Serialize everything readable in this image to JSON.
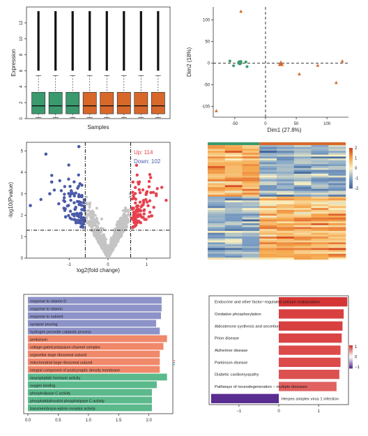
{
  "chart_data": [
    {
      "type": "box",
      "xlabel": "Samples",
      "ylabel": "Expression",
      "yticks": [
        "0",
        "2",
        "4",
        "6",
        "8",
        "10",
        "12"
      ],
      "ylim": [
        0,
        14
      ],
      "boxes": [
        {
          "color": "#3a9a6e",
          "q1": 0.6,
          "median": 1.6,
          "q3": 3.3,
          "whisker_low": 0.15,
          "whisker_high": 5.4
        },
        {
          "color": "#3a9a6e",
          "q1": 0.6,
          "median": 1.6,
          "q3": 3.3,
          "whisker_low": 0.15,
          "whisker_high": 5.4
        },
        {
          "color": "#3a9a6e",
          "q1": 0.6,
          "median": 1.6,
          "q3": 3.3,
          "whisker_low": 0.15,
          "whisker_high": 5.4
        },
        {
          "color": "#d8682a",
          "q1": 0.6,
          "median": 1.6,
          "q3": 3.3,
          "whisker_low": 0.15,
          "whisker_high": 5.4
        },
        {
          "color": "#d8682a",
          "q1": 0.6,
          "median": 1.6,
          "q3": 3.3,
          "whisker_low": 0.15,
          "whisker_high": 5.4
        },
        {
          "color": "#d8682a",
          "q1": 0.6,
          "median": 1.6,
          "q3": 3.3,
          "whisker_low": 0.15,
          "whisker_high": 5.4
        },
        {
          "color": "#d8682a",
          "q1": 0.6,
          "median": 1.6,
          "q3": 3.3,
          "whisker_low": 0.15,
          "whisker_high": 5.4
        },
        {
          "color": "#d8682a",
          "q1": 0.6,
          "median": 1.6,
          "q3": 3.3,
          "whisker_low": 0.15,
          "whisker_high": 5.4
        }
      ]
    },
    {
      "type": "scatter",
      "xlabel": "Dim1 (27.8%)",
      "ylabel": "Dim2 (18%)",
      "xlim": [
        -85,
        135
      ],
      "ylim": [
        -125,
        130
      ],
      "xticks": [
        "-50",
        "0",
        "50",
        "100"
      ],
      "yticks": [
        "-100",
        "-50",
        "0",
        "50",
        "100"
      ],
      "series": [
        {
          "color": "#3a9a6e",
          "shape": "circle",
          "points": [
            [
              -58,
              5
            ],
            [
              -40,
              4
            ],
            [
              -32,
              3
            ],
            [
              -52,
              -6
            ],
            [
              -30,
              -8
            ]
          ],
          "centroid": [
            -42,
            1
          ]
        },
        {
          "color": "#d8682a",
          "shape": "triangle",
          "points": [
            [
              -40,
              120
            ],
            [
              -80,
              -110
            ],
            [
              25,
              -1
            ],
            [
              55,
              -25
            ],
            [
              85,
              -5
            ],
            [
              125,
              5
            ],
            [
              115,
              -45
            ]
          ],
          "centroid": [
            25,
            -1
          ]
        }
      ]
    },
    {
      "type": "scatter",
      "subtype": "volcano",
      "xlabel": "log2(fold change)",
      "ylabel": "-log10(Pvalue)",
      "xlim": [
        -2.1,
        1.6
      ],
      "ylim": [
        0,
        5.4
      ],
      "xticks": [
        "-1",
        "0",
        "1"
      ],
      "yticks": [
        "0",
        "1",
        "2",
        "3",
        "4",
        "5"
      ],
      "thresholds": {
        "x": [
          -0.585,
          0.585
        ],
        "y": 1.3
      },
      "legend": [
        {
          "label": "Up: 114",
          "color": "#e8414e"
        },
        {
          "label": "Down: 102",
          "color": "#4a5aa8"
        }
      ],
      "colors": {
        "up": "#e8414e",
        "down": "#4a5aa8",
        "ns": "#c4c4c4"
      },
      "counts": {
        "up": 114,
        "down": 102
      }
    },
    {
      "type": "heatmap",
      "columns": 8,
      "rows": 60,
      "column_groups": [
        {
          "color": "#3a9a6e",
          "count": 3
        },
        {
          "color": "#d8682a",
          "count": 5
        }
      ],
      "colorbar": {
        "ticks": [
          "2",
          "1",
          "0",
          "-1",
          "-2"
        ],
        "range": [
          -2,
          2
        ]
      }
    },
    {
      "type": "bar",
      "orientation": "horizontal",
      "categories": [
        "response to vitamin D",
        "response to vitamin",
        "response to nutrient",
        "synapse pruning",
        "hydrogen peroxide catabolic process",
        "perikaryon",
        "voltage-gated potassium channel complex",
        "organellar large ribosomal subunit",
        "mitochondrial large ribosomal subunit",
        "integral component of postsynaptic density membrane",
        "neuropeptide hormone activity",
        "oxygen binding",
        "phospholipase C activity",
        "phosphatidylinositol phospholipase C activity",
        "transmembrane-ephrin receptor activity"
      ],
      "values": [
        2.21,
        2.21,
        2.2,
        2.12,
        2.18,
        2.3,
        2.24,
        2.18,
        2.18,
        2.18,
        2.3,
        2.13,
        2.05,
        2.05,
        2.05
      ],
      "colors": [
        "#8d93c8",
        "#8d93c8",
        "#8d93c8",
        "#8d93c8",
        "#8d93c8",
        "#f0886a",
        "#f0886a",
        "#f0886a",
        "#f0886a",
        "#f0886a",
        "#5bb98c",
        "#5bb98c",
        "#5bb98c",
        "#5bb98c",
        "#5bb98c"
      ],
      "xticks": [
        "0.0",
        "0.5",
        "1.0",
        "1.5",
        "2.0"
      ],
      "xlim": [
        0,
        2.35
      ]
    },
    {
      "type": "bar",
      "orientation": "horizontal",
      "categories": [
        "Endocrine and other factor−regulated calcium reabsorption",
        "Oxidative phosphorylation",
        "Aldosterone synthesis and secretion",
        "Prion disease",
        "Alzheimer disease",
        "Parkinson disease",
        "Diabetic cardiomyopathy",
        "Pathways of neurodegeneration − multiple diseases",
        "Herpes simplex virus 1 infection"
      ],
      "values": [
        1.72,
        1.63,
        1.6,
        1.58,
        1.55,
        1.55,
        1.52,
        1.45,
        -1.7
      ],
      "colors": [
        "#d53535",
        "#d94040",
        "#d94040",
        "#da4444",
        "#dc4a4a",
        "#dc4a4a",
        "#dd5050",
        "#e16060",
        "#5a2d91"
      ],
      "xticks": [
        "−1",
        "0",
        "1"
      ],
      "xlim": [
        -1.75,
        1.75
      ],
      "colorbar": {
        "ticks": [
          "1",
          "0",
          "−1"
        ]
      }
    }
  ]
}
